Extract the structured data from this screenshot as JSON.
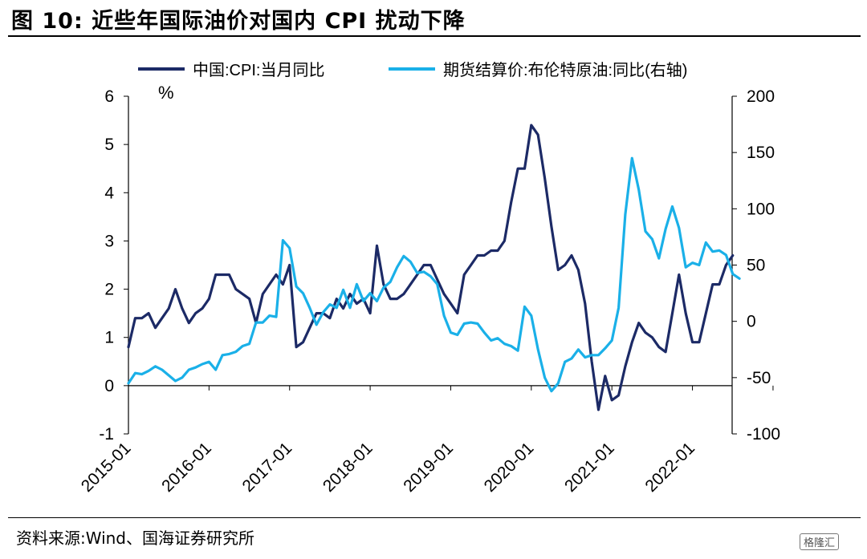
{
  "title": "图 10:  近些年国际油价对国内 CPI 扰动下降",
  "source": "资料来源:Wind、国海证券研究所",
  "watermark": "格隆汇",
  "chart_data": {
    "type": "line",
    "unit_label": "%",
    "x_tick_labels": [
      "2015-01",
      "2016-01",
      "2017-01",
      "2018-01",
      "2019-01",
      "2020-01",
      "2021-01",
      "2022-01"
    ],
    "y_left_ticks": [
      "6",
      "5",
      "4",
      "3",
      "2",
      "1",
      "0",
      "-1"
    ],
    "y_right_ticks": [
      "200",
      "150",
      "100",
      "50",
      "0",
      "-50",
      "-100"
    ],
    "ylim_left": [
      -1,
      6
    ],
    "ylim_right": [
      -100,
      200
    ],
    "x_start": "2015-01",
    "legend_position": "top",
    "series": [
      {
        "name": "中国:CPI:当月同比",
        "axis": "left",
        "color": "#1c2a66",
        "values": [
          0.8,
          1.4,
          1.4,
          1.5,
          1.2,
          1.4,
          1.6,
          2.0,
          1.6,
          1.3,
          1.5,
          1.6,
          1.8,
          2.3,
          2.3,
          2.3,
          2.0,
          1.9,
          1.8,
          1.3,
          1.9,
          2.1,
          2.3,
          2.1,
          2.5,
          0.8,
          0.9,
          1.2,
          1.5,
          1.5,
          1.4,
          1.8,
          1.6,
          1.9,
          1.7,
          1.8,
          1.5,
          2.9,
          2.1,
          1.8,
          1.8,
          1.9,
          2.1,
          2.3,
          2.5,
          2.5,
          2.2,
          1.9,
          1.7,
          1.5,
          2.3,
          2.5,
          2.7,
          2.7,
          2.8,
          2.8,
          3.0,
          3.8,
          4.5,
          4.5,
          5.4,
          5.2,
          4.3,
          3.3,
          2.4,
          2.5,
          2.7,
          2.4,
          1.7,
          0.5,
          -0.5,
          0.2,
          -0.3,
          -0.2,
          0.4,
          0.9,
          1.3,
          1.1,
          1.0,
          0.8,
          0.7,
          1.5,
          2.3,
          1.5,
          0.9,
          0.9,
          1.5,
          2.1,
          2.1,
          2.5,
          2.7
        ]
      },
      {
        "name": "期货结算价:布伦特原油:同比(右轴)",
        "axis": "right",
        "color": "#1ab0e8",
        "values": [
          -55,
          -46,
          -47,
          -44,
          -40,
          -43,
          -48,
          -53,
          -50,
          -43,
          -41,
          -38,
          -36,
          -43,
          -30,
          -29,
          -27,
          -22,
          -20,
          -1,
          -1,
          5,
          4,
          72,
          65,
          31,
          25,
          12,
          -3,
          8,
          15,
          12,
          28,
          12,
          33,
          18,
          25,
          18,
          30,
          35,
          48,
          58,
          53,
          43,
          44,
          40,
          33,
          5,
          -10,
          -12,
          -2,
          -1,
          -2,
          -10,
          -17,
          -15,
          -20,
          -22,
          -26,
          13,
          5,
          -25,
          -50,
          -62,
          -55,
          -36,
          -33,
          -25,
          -32,
          -30,
          -30,
          -24,
          -17,
          12,
          95,
          145,
          117,
          80,
          73,
          56,
          82,
          102,
          83,
          48,
          52,
          50,
          70,
          62,
          63,
          59,
          42,
          38
        ]
      }
    ]
  }
}
